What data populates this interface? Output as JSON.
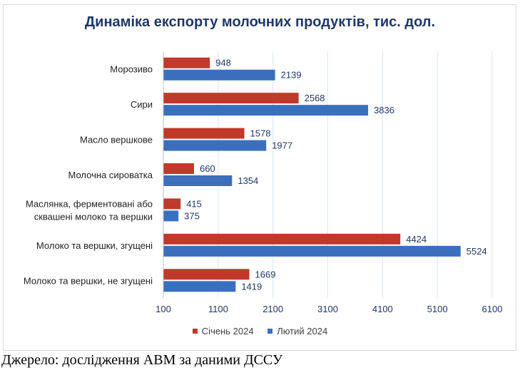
{
  "chart_data": {
    "type": "bar",
    "orientation": "horizontal",
    "title": "Динаміка експорту молочних продуктів, тис. дол.",
    "categories": [
      [
        "Морозиво"
      ],
      [
        "Сири"
      ],
      [
        "Масло вершкове"
      ],
      [
        "Молочна сироватка"
      ],
      [
        "Маслянка, ферментовані або",
        "сквашені молоко та вершки"
      ],
      [
        "Молоко та вершки, згущені"
      ],
      [
        "Молоко та вершки, не згущені"
      ]
    ],
    "series": [
      {
        "name": "Січень 2024",
        "color": "#c0392b",
        "values": [
          948,
          2568,
          1578,
          660,
          415,
          4424,
          1669
        ]
      },
      {
        "name": "Лютий 2024",
        "color": "#3a6fbe",
        "values": [
          2139,
          3836,
          1977,
          1354,
          375,
          5524,
          1419
        ]
      }
    ],
    "xlim": [
      100,
      6100
    ],
    "xticks": [
      100,
      1100,
      2100,
      3100,
      4100,
      5100,
      6100
    ],
    "grid": true,
    "legend_position": "bottom"
  },
  "source": "Джерело: дослідження АВМ за даними ДССУ"
}
